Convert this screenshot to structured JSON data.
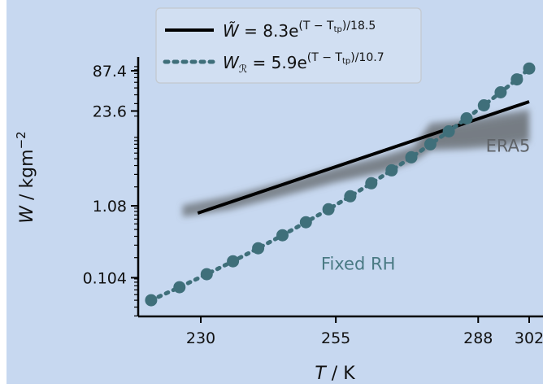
{
  "chart_data": {
    "type": "scatter",
    "background_color": "#c7d8f0",
    "x_axis": {
      "label_var": "T",
      "label_unit": " / K",
      "scale": "reciprocal",
      "ticks": [
        230,
        255,
        288,
        302
      ]
    },
    "y_axis": {
      "label_var": "W",
      "label_unit": " / kgm",
      "label_exp": "−2",
      "scale": "log",
      "ticks": [
        0.104,
        1.08,
        23.6,
        87.4
      ]
    },
    "series": [
      {
        "kind": "line",
        "color": "#000000",
        "style": "solid",
        "legend_label": "W̃ = 8.3e^((T − Ttp)/18.5)",
        "x": [
          229.5,
          302
        ],
        "y": [
          0.85,
          32.0
        ]
      },
      {
        "kind": "line-markers",
        "color": "#3f6f7a",
        "style": "dotted",
        "legend_label": "W_R = 5.9e^((T − Ttp)/10.7)",
        "x": [
          222,
          226.5,
          231,
          235.5,
          240,
          244.5,
          249,
          253.5,
          258,
          262.5,
          267,
          271.5,
          276,
          280.5,
          285,
          289.5,
          294,
          298.5,
          302
        ],
        "y": [
          0.05,
          0.0764,
          0.1166,
          0.1778,
          0.2714,
          0.4142,
          0.632,
          0.9645,
          1.4719,
          2.2462,
          3.4279,
          5.2312,
          7.9832,
          12.18,
          18.59,
          28.37,
          43.3,
          66.08,
          94.0
        ]
      },
      {
        "kind": "cloud",
        "color": "#6d7378",
        "x": [
          227,
          235,
          245,
          255,
          265,
          272,
          276,
          285,
          295,
          302
        ],
        "y_low": [
          0.75,
          0.95,
          1.5,
          2.3,
          3.2,
          4.5,
          6.5,
          6.8,
          7.5,
          8.5
        ],
        "y_high": [
          1.1,
          1.5,
          2.4,
          3.8,
          5.5,
          7.5,
          16.0,
          18.0,
          22.0,
          25.0
        ]
      }
    ],
    "legend": {
      "position": "top-center",
      "entries": [
        {
          "lhs": "W̃",
          "lhs_sub": "",
          "coef": "8.3",
          "exp_main": "(T − T",
          "exp_sub": "tp",
          "exp_tail": ")/18.5"
        },
        {
          "lhs": "W",
          "lhs_sub": "ℛ",
          "coef": "5.9",
          "exp_main": "(T − T",
          "exp_sub": "tp",
          "exp_tail": ")/10.7"
        }
      ]
    },
    "annotations": [
      {
        "text": "ERA5",
        "color": "#5f6368",
        "x": 290,
        "y": 6.3
      },
      {
        "text": "Fixed RH",
        "color": "#4a7a84",
        "x": 252,
        "y": 0.135
      }
    ]
  }
}
